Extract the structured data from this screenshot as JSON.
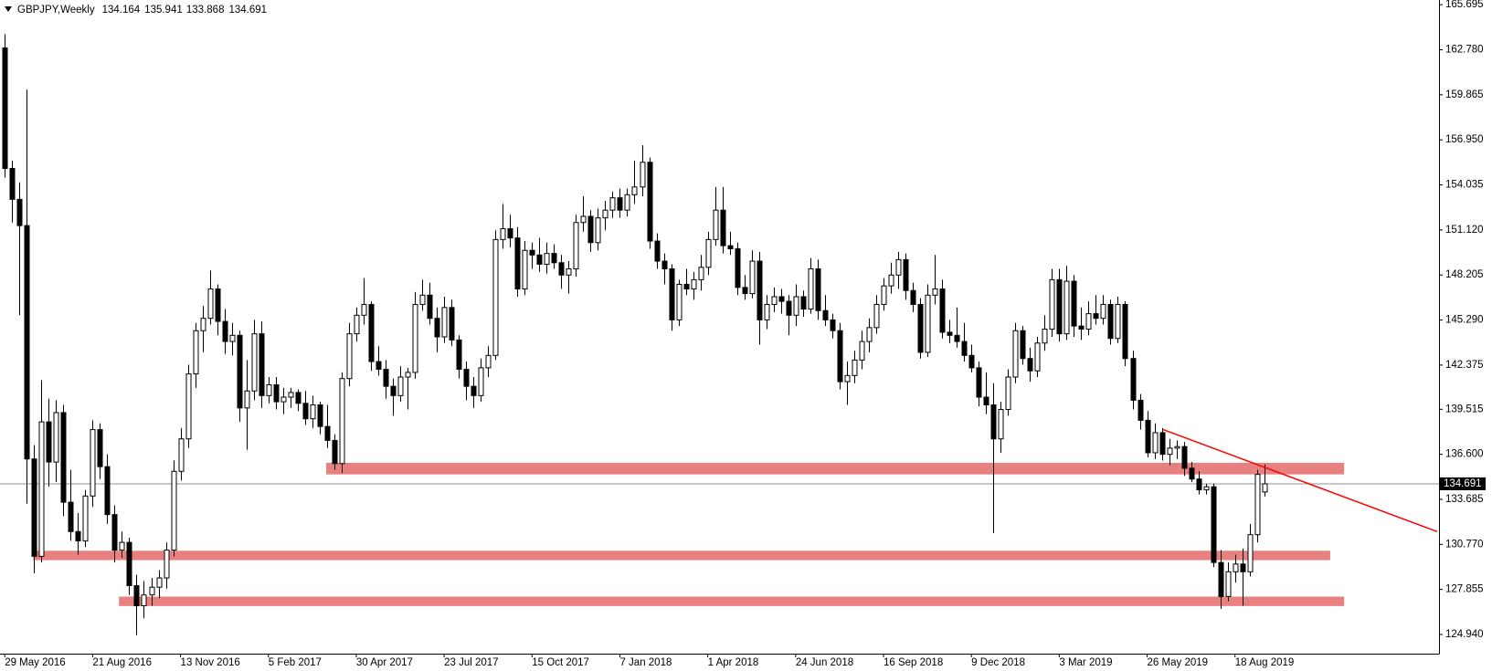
{
  "chart_data": {
    "type": "candlestick",
    "symbol": "GBPJPY,Weekly",
    "categories": [
      "29 May 2016",
      null,
      null,
      null,
      null,
      null,
      null,
      null,
      null,
      null,
      null,
      null,
      "21 Aug 2016",
      null,
      null,
      null,
      null,
      null,
      null,
      null,
      null,
      null,
      null,
      null,
      "13 Nov 2016",
      null,
      null,
      null,
      null,
      null,
      null,
      null,
      null,
      null,
      null,
      null,
      "5 Feb 2017",
      null,
      null,
      null,
      null,
      null,
      null,
      null,
      null,
      null,
      null,
      null,
      "30 Apr 2017",
      null,
      null,
      null,
      null,
      null,
      null,
      null,
      null,
      null,
      null,
      null,
      "23 Jul 2017",
      null,
      null,
      null,
      null,
      null,
      null,
      null,
      null,
      null,
      null,
      null,
      "15 Oct 2017",
      null,
      null,
      null,
      null,
      null,
      null,
      null,
      null,
      null,
      null,
      null,
      "7 Jan 2018",
      null,
      null,
      null,
      null,
      null,
      null,
      null,
      null,
      null,
      null,
      null,
      "1 Apr 2018",
      null,
      null,
      null,
      null,
      null,
      null,
      null,
      null,
      null,
      null,
      null,
      "24 Jun 2018",
      null,
      null,
      null,
      null,
      null,
      null,
      null,
      null,
      null,
      null,
      null,
      "16 Sep 2018",
      null,
      null,
      null,
      null,
      null,
      null,
      null,
      null,
      null,
      null,
      null,
      "9 Dec 2018",
      null,
      null,
      null,
      null,
      null,
      null,
      null,
      null,
      null,
      null,
      null,
      "3 Mar 2019",
      null,
      null,
      null,
      null,
      null,
      null,
      null,
      null,
      null,
      null,
      null,
      "26 May 2019",
      null,
      null,
      null,
      null,
      null,
      null,
      null,
      null,
      null,
      null,
      null,
      "18 Aug 2019",
      null,
      null,
      null,
      null
    ],
    "ohlc": [
      [
        162.9,
        163.8,
        154.5,
        155.1
      ],
      [
        155.1,
        155.6,
        151.6,
        153.1
      ],
      [
        153.1,
        154.2,
        145.6,
        151.4
      ],
      [
        151.4,
        160.2,
        133.4,
        136.3
      ],
      [
        136.3,
        137.2,
        128.9,
        130.0
      ],
      [
        130.0,
        141.4,
        129.6,
        138.7
      ],
      [
        138.7,
        140.2,
        134.5,
        136.1
      ],
      [
        136.1,
        140.1,
        134.8,
        139.3
      ],
      [
        139.3,
        139.8,
        132.6,
        133.5
      ],
      [
        133.5,
        135.6,
        131.0,
        131.6
      ],
      [
        131.6,
        132.8,
        130.1,
        131.0
      ],
      [
        131.0,
        134.3,
        130.6,
        133.9
      ],
      [
        133.9,
        138.8,
        133.2,
        138.2
      ],
      [
        138.2,
        138.6,
        135.0,
        135.8
      ],
      [
        135.8,
        136.6,
        132.1,
        132.7
      ],
      [
        132.7,
        133.3,
        129.6,
        130.4
      ],
      [
        130.4,
        131.6,
        129.9,
        130.9
      ],
      [
        130.9,
        131.2,
        127.5,
        128.1
      ],
      [
        128.1,
        128.8,
        124.9,
        126.8
      ],
      [
        126.8,
        128.4,
        126.0,
        127.5
      ],
      [
        127.5,
        128.6,
        126.8,
        128.0
      ],
      [
        128.0,
        129.1,
        127.3,
        128.6
      ],
      [
        128.6,
        130.9,
        127.9,
        130.4
      ],
      [
        130.4,
        136.2,
        130.0,
        135.5
      ],
      [
        135.5,
        138.3,
        134.9,
        137.6
      ],
      [
        137.6,
        142.4,
        137.0,
        141.8
      ],
      [
        141.8,
        145.1,
        140.9,
        144.6
      ],
      [
        144.6,
        146.2,
        143.2,
        145.4
      ],
      [
        145.4,
        148.5,
        145.0,
        147.3
      ],
      [
        147.3,
        147.6,
        144.3,
        145.2
      ],
      [
        145.2,
        146.0,
        143.1,
        143.9
      ],
      [
        143.9,
        145.1,
        143.0,
        144.3
      ],
      [
        144.3,
        144.6,
        138.7,
        139.6
      ],
      [
        139.6,
        142.7,
        136.9,
        140.7
      ],
      [
        140.7,
        145.3,
        140.1,
        144.4
      ],
      [
        144.4,
        145.2,
        139.6,
        140.4
      ],
      [
        140.4,
        141.6,
        139.9,
        141.1
      ],
      [
        141.1,
        141.6,
        139.5,
        140.0
      ],
      [
        140.0,
        140.9,
        139.2,
        140.3
      ],
      [
        140.3,
        140.9,
        139.6,
        140.6
      ],
      [
        140.6,
        140.8,
        139.4,
        139.9
      ],
      [
        139.9,
        140.7,
        138.5,
        138.9
      ],
      [
        138.9,
        140.4,
        138.3,
        139.8
      ],
      [
        139.8,
        140.0,
        137.9,
        138.4
      ],
      [
        138.4,
        139.8,
        137.0,
        137.5
      ],
      [
        137.5,
        137.9,
        135.6,
        136.0
      ],
      [
        136.0,
        141.9,
        135.4,
        141.5
      ],
      [
        141.5,
        145.1,
        141.0,
        144.4
      ],
      [
        144.4,
        146.1,
        143.9,
        145.6
      ],
      [
        145.6,
        148.0,
        145.0,
        146.3
      ],
      [
        146.3,
        146.5,
        142.0,
        142.6
      ],
      [
        142.6,
        143.6,
        141.7,
        142.1
      ],
      [
        142.1,
        142.7,
        140.2,
        141.0
      ],
      [
        141.0,
        141.5,
        139.1,
        140.4
      ],
      [
        140.4,
        142.3,
        140.0,
        141.6
      ],
      [
        141.6,
        142.2,
        139.5,
        141.9
      ],
      [
        141.9,
        147.1,
        141.5,
        146.3
      ],
      [
        146.3,
        147.9,
        145.9,
        146.9
      ],
      [
        146.9,
        147.7,
        145.0,
        145.4
      ],
      [
        145.4,
        146.1,
        143.2,
        144.2
      ],
      [
        144.2,
        146.8,
        143.8,
        146.1
      ],
      [
        146.1,
        146.6,
        143.6,
        144.0
      ],
      [
        144.0,
        144.3,
        141.5,
        142.1
      ],
      [
        142.1,
        142.6,
        140.1,
        141.0
      ],
      [
        141.0,
        141.6,
        139.6,
        140.4
      ],
      [
        140.4,
        142.8,
        140.0,
        142.2
      ],
      [
        142.2,
        143.6,
        141.6,
        143.0
      ],
      [
        143.0,
        151.1,
        142.7,
        150.5
      ],
      [
        150.5,
        152.8,
        149.9,
        151.2
      ],
      [
        151.2,
        152.1,
        150.0,
        150.6
      ],
      [
        150.6,
        151.3,
        146.8,
        147.3
      ],
      [
        147.3,
        150.4,
        146.9,
        149.8
      ],
      [
        149.8,
        150.3,
        148.6,
        149.5
      ],
      [
        149.5,
        150.6,
        148.4,
        148.9
      ],
      [
        148.9,
        150.3,
        148.3,
        149.6
      ],
      [
        149.6,
        150.2,
        148.6,
        149.0
      ],
      [
        149.0,
        149.5,
        147.3,
        148.2
      ],
      [
        148.2,
        149.1,
        147.0,
        148.6
      ],
      [
        148.6,
        152.1,
        148.1,
        151.6
      ],
      [
        151.6,
        153.3,
        151.0,
        152.0
      ],
      [
        152.0,
        152.4,
        149.7,
        150.3
      ],
      [
        150.3,
        152.5,
        149.8,
        151.9
      ],
      [
        151.9,
        153.0,
        151.1,
        152.4
      ],
      [
        152.4,
        153.6,
        151.9,
        153.2
      ],
      [
        153.2,
        153.8,
        151.9,
        152.4
      ],
      [
        152.4,
        153.8,
        152.0,
        153.4
      ],
      [
        153.4,
        155.6,
        152.8,
        153.9
      ],
      [
        153.9,
        156.6,
        153.3,
        155.5
      ],
      [
        155.5,
        155.8,
        149.9,
        150.4
      ],
      [
        150.4,
        150.9,
        148.6,
        149.1
      ],
      [
        149.1,
        149.6,
        147.6,
        148.6
      ],
      [
        148.6,
        148.9,
        144.6,
        145.3
      ],
      [
        145.3,
        147.9,
        144.9,
        147.6
      ],
      [
        147.6,
        148.6,
        146.9,
        147.3
      ],
      [
        147.3,
        148.4,
        146.6,
        147.9
      ],
      [
        147.9,
        149.5,
        147.2,
        148.7
      ],
      [
        148.7,
        151.0,
        148.2,
        150.5
      ],
      [
        150.5,
        153.9,
        150.1,
        152.4
      ],
      [
        152.4,
        153.9,
        149.6,
        150.1
      ],
      [
        150.1,
        151.0,
        149.5,
        149.9
      ],
      [
        149.9,
        150.3,
        146.9,
        147.4
      ],
      [
        147.4,
        148.2,
        146.6,
        147.0
      ],
      [
        147.0,
        149.8,
        146.7,
        149.1
      ],
      [
        149.1,
        149.7,
        143.7,
        145.3
      ],
      [
        145.3,
        146.9,
        144.7,
        146.3
      ],
      [
        146.3,
        147.4,
        145.8,
        146.8
      ],
      [
        146.8,
        147.3,
        145.7,
        146.5
      ],
      [
        146.5,
        146.9,
        144.3,
        145.6
      ],
      [
        145.6,
        147.6,
        144.9,
        146.8
      ],
      [
        146.8,
        147.2,
        145.5,
        146.0
      ],
      [
        146.0,
        149.3,
        145.7,
        148.6
      ],
      [
        148.6,
        149.2,
        145.3,
        145.9
      ],
      [
        145.9,
        146.9,
        144.9,
        145.3
      ],
      [
        145.3,
        145.7,
        144.1,
        144.6
      ],
      [
        144.6,
        145.1,
        140.8,
        141.3
      ],
      [
        141.3,
        142.6,
        139.8,
        141.7
      ],
      [
        141.7,
        143.3,
        141.2,
        142.7
      ],
      [
        142.7,
        144.6,
        142.1,
        143.9
      ],
      [
        143.9,
        145.4,
        143.2,
        144.8
      ],
      [
        144.8,
        146.9,
        144.4,
        146.3
      ],
      [
        146.3,
        148.0,
        145.9,
        147.5
      ],
      [
        147.5,
        149.0,
        147.0,
        148.2
      ],
      [
        148.2,
        149.7,
        147.3,
        149.2
      ],
      [
        149.2,
        149.6,
        146.6,
        147.2
      ],
      [
        147.2,
        147.7,
        145.8,
        146.3
      ],
      [
        146.3,
        146.7,
        142.8,
        143.2
      ],
      [
        143.2,
        147.6,
        142.9,
        146.9
      ],
      [
        146.9,
        149.5,
        146.3,
        147.3
      ],
      [
        147.3,
        147.9,
        144.1,
        144.5
      ],
      [
        144.5,
        145.3,
        143.8,
        144.3
      ],
      [
        144.3,
        146.1,
        143.5,
        143.9
      ],
      [
        143.9,
        145.1,
        142.6,
        143.0
      ],
      [
        143.0,
        143.7,
        141.9,
        142.2
      ],
      [
        142.2,
        142.6,
        139.7,
        140.3
      ],
      [
        140.3,
        141.9,
        139.2,
        139.8
      ],
      [
        139.8,
        141.2,
        131.5,
        137.6
      ],
      [
        137.6,
        140.0,
        136.7,
        139.5
      ],
      [
        139.5,
        142.1,
        139.1,
        141.6
      ],
      [
        141.6,
        145.1,
        141.2,
        144.6
      ],
      [
        144.6,
        144.9,
        142.4,
        142.8
      ],
      [
        142.8,
        143.5,
        141.3,
        142.0
      ],
      [
        142.0,
        144.2,
        141.6,
        143.8
      ],
      [
        143.8,
        145.6,
        143.3,
        144.7
      ],
      [
        144.7,
        148.6,
        144.2,
        147.9
      ],
      [
        147.9,
        148.6,
        143.9,
        144.4
      ],
      [
        144.4,
        148.8,
        144.0,
        147.8
      ],
      [
        147.8,
        148.2,
        144.2,
        144.9
      ],
      [
        144.9,
        146.1,
        144.0,
        144.7
      ],
      [
        144.7,
        146.5,
        144.3,
        145.7
      ],
      [
        145.7,
        146.9,
        145.0,
        145.4
      ],
      [
        145.4,
        146.9,
        145.0,
        146.3
      ],
      [
        146.3,
        146.6,
        143.7,
        144.1
      ],
      [
        144.1,
        146.8,
        143.8,
        146.3
      ],
      [
        146.3,
        146.5,
        142.3,
        142.8
      ],
      [
        142.8,
        143.3,
        139.5,
        140.1
      ],
      [
        140.1,
        140.5,
        138.2,
        138.8
      ],
      [
        138.8,
        139.4,
        136.4,
        136.7
      ],
      [
        136.7,
        138.6,
        136.3,
        138.0
      ],
      [
        138.0,
        138.3,
        136.2,
        136.6
      ],
      [
        136.6,
        137.6,
        135.9,
        137.0
      ],
      [
        137.0,
        137.5,
        136.3,
        137.1
      ],
      [
        137.1,
        137.4,
        135.2,
        135.7
      ],
      [
        135.7,
        136.1,
        134.8,
        135.0
      ],
      [
        135.0,
        135.5,
        134.0,
        134.3
      ],
      [
        134.3,
        134.7,
        134.0,
        134.5
      ],
      [
        134.5,
        134.7,
        129.3,
        129.6
      ],
      [
        129.6,
        130.4,
        126.6,
        127.4
      ],
      [
        127.4,
        129.6,
        127.1,
        129.0
      ],
      [
        129.0,
        130.1,
        128.3,
        129.5
      ],
      [
        129.5,
        130.5,
        126.8,
        129.0
      ],
      [
        129.0,
        132.1,
        128.7,
        131.4
      ],
      [
        131.4,
        135.6,
        130.9,
        135.3
      ],
      [
        134.164,
        135.941,
        133.868,
        134.691
      ]
    ],
    "ylim": [
      123.7,
      166.0
    ],
    "yticks": [
      165.695,
      {
        "value": 162.78,
        "label": "162.780"
      },
      159.865,
      {
        "value": 156.95,
        "label": "156.950"
      },
      154.035,
      {
        "value": 151.12,
        "label": "151.120"
      },
      148.205,
      {
        "value": 145.29,
        "label": "145.290"
      },
      142.375,
      139.515,
      {
        "value": 136.6,
        "label": "136.600"
      },
      133.685,
      {
        "value": 130.77,
        "label": "130.770"
      },
      127.855,
      {
        "value": 124.94,
        "label": "124.940"
      }
    ],
    "zones": [
      {
        "low": 135.3,
        "high": 136.05,
        "start": 43.9,
        "end": 182.9
      },
      {
        "low": 129.75,
        "high": 130.36,
        "start": 3.9,
        "end": 181.0
      },
      {
        "low": 126.78,
        "high": 127.39,
        "start": 15.6,
        "end": 182.9
      }
    ],
    "zone_color": "#e88080",
    "trendline": {
      "x": [
        158.2,
        195.6
      ],
      "y": [
        138.2,
        131.6
      ],
      "color": "#ff0000"
    }
  }
}
